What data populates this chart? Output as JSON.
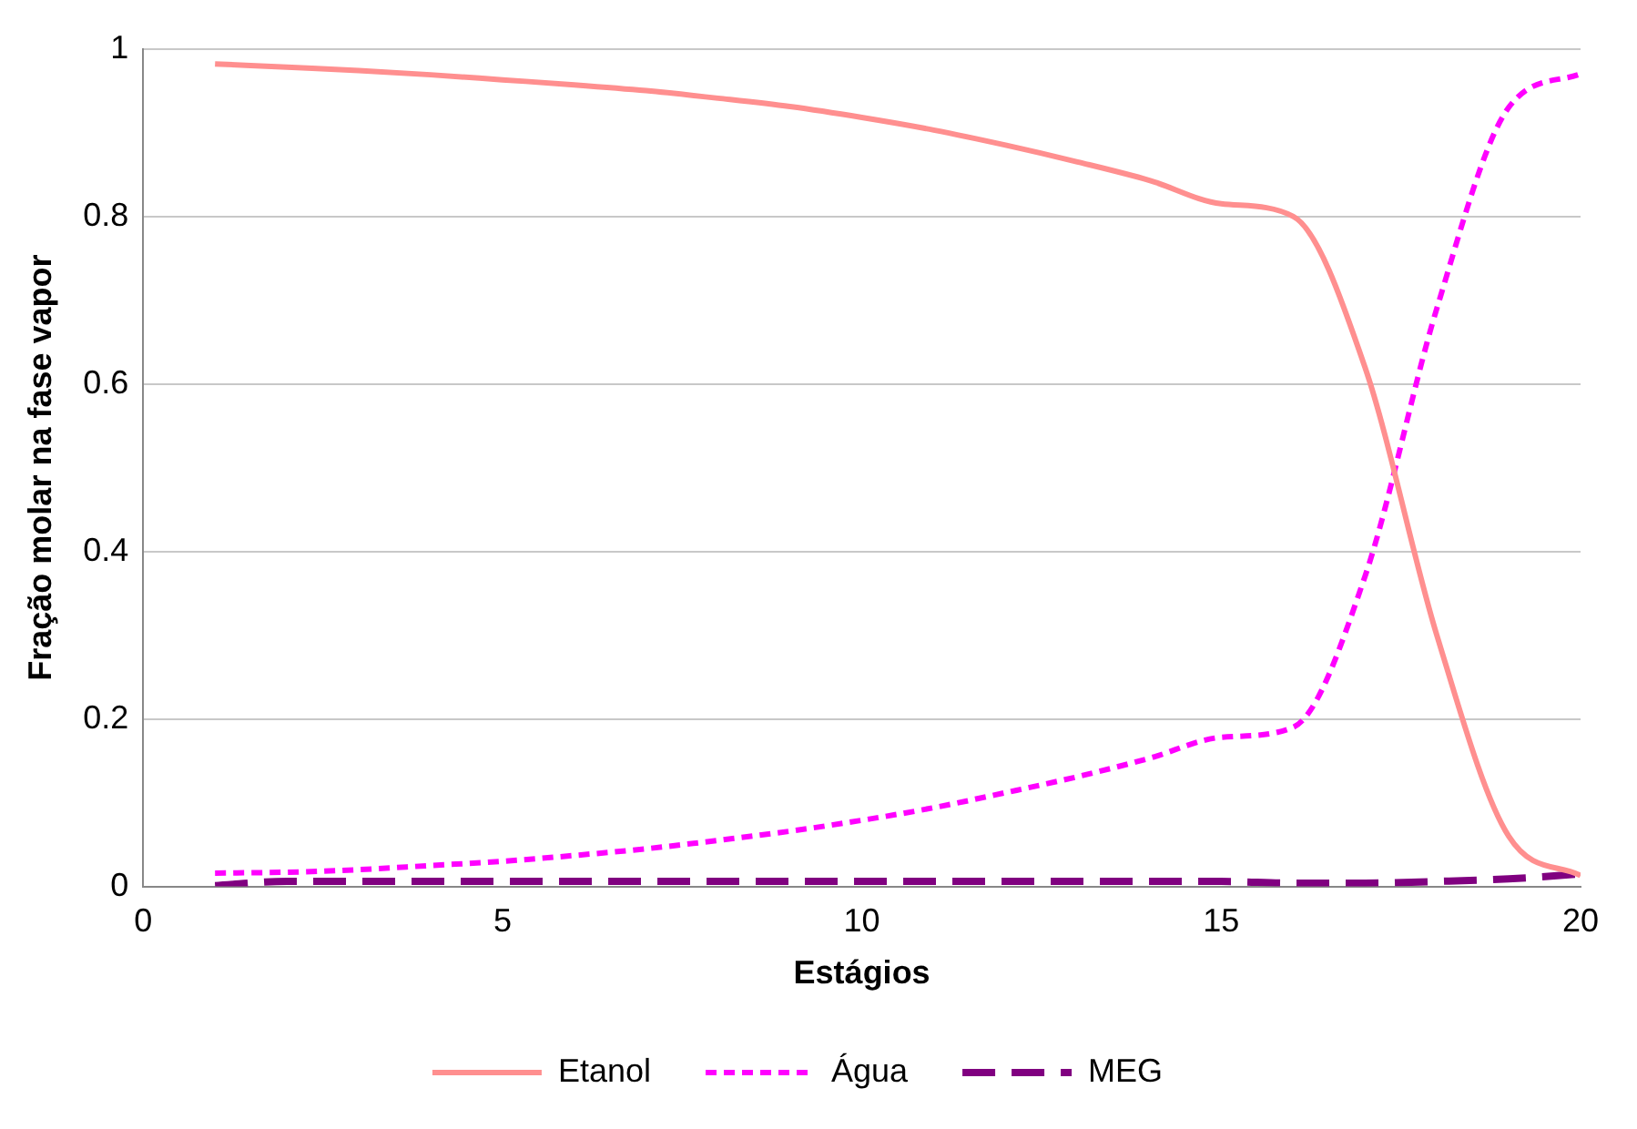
{
  "chart_data": {
    "type": "line",
    "xlabel": "Estágios",
    "ylabel": "Fração molar na fase vapor",
    "x": [
      1,
      2,
      3,
      4,
      5,
      6,
      7,
      8,
      9,
      10,
      11,
      12,
      13,
      14,
      15,
      16,
      17,
      18,
      19,
      20
    ],
    "series": [
      {
        "name": "Etanol",
        "color": "#ff8f8f",
        "line_style": "solid",
        "values": [
          0.982,
          0.978,
          0.974,
          0.969,
          0.963,
          0.957,
          0.95,
          0.941,
          0.931,
          0.918,
          0.903,
          0.885,
          0.865,
          0.843,
          0.815,
          0.8,
          0.62,
          0.3,
          0.06,
          0.013
        ]
      },
      {
        "name": "Água",
        "color": "#ff00ff",
        "line_style": "dashed",
        "values": [
          0.016,
          0.017,
          0.02,
          0.025,
          0.03,
          0.037,
          0.045,
          0.055,
          0.066,
          0.079,
          0.094,
          0.112,
          0.131,
          0.153,
          0.178,
          0.19,
          0.37,
          0.69,
          0.93,
          0.97
        ]
      },
      {
        "name": "MEG",
        "color": "#800080",
        "line_style": "longdash",
        "values": [
          0.001,
          0.006,
          0.006,
          0.006,
          0.006,
          0.006,
          0.006,
          0.006,
          0.006,
          0.006,
          0.006,
          0.006,
          0.006,
          0.006,
          0.006,
          0.004,
          0.004,
          0.006,
          0.009,
          0.015
        ]
      }
    ],
    "xlim": [
      0,
      20
    ],
    "xticks": [
      0,
      5,
      10,
      15,
      20
    ],
    "ylim": [
      0,
      1
    ],
    "yticks": [
      0,
      0.2,
      0.4,
      0.6,
      0.8,
      1
    ],
    "grid": "y",
    "legend": "bottom",
    "marker": "none"
  }
}
